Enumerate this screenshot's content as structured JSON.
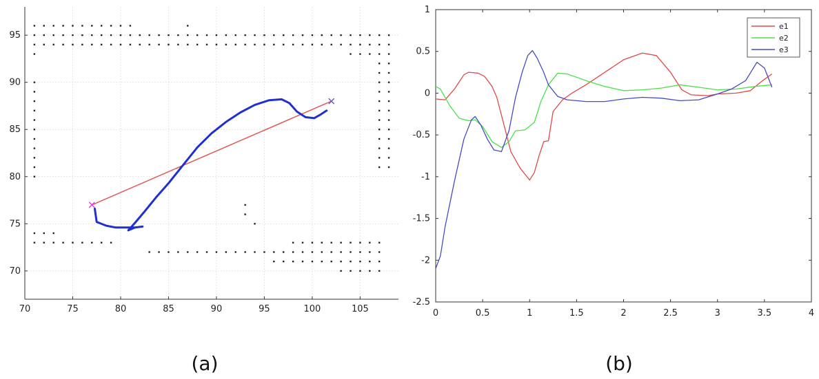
{
  "captions": {
    "a": "(a)",
    "b": "(b)"
  },
  "chart_data": [
    {
      "type": "scatter",
      "xlim": [
        70,
        109
      ],
      "ylim": [
        67,
        98
      ],
      "xticks": [
        70,
        75,
        80,
        85,
        90,
        95,
        100,
        105
      ],
      "yticks": [
        70,
        75,
        80,
        85,
        90,
        95
      ],
      "grid": true,
      "colors": {
        "straight": "#e05a5a",
        "trajectory": "#1f2fd0",
        "start": "#e040e0",
        "goal": "#6a5acd",
        "obstacle": "#222222"
      },
      "straight_line": [
        [
          77,
          77
        ],
        [
          102,
          88
        ]
      ],
      "trajectory": [
        [
          77.3,
          76.6
        ],
        [
          77.5,
          75.2
        ],
        [
          78.5,
          74.8
        ],
        [
          79.5,
          74.6
        ],
        [
          80.5,
          74.6
        ],
        [
          81.5,
          74.6
        ],
        [
          82.3,
          74.7
        ],
        [
          81.5,
          74.6
        ],
        [
          80.8,
          74.3
        ],
        [
          81.5,
          75.1
        ],
        [
          82.5,
          76.3
        ],
        [
          83.7,
          77.8
        ],
        [
          85,
          79.3
        ],
        [
          86.5,
          81.2
        ],
        [
          88,
          83.1
        ],
        [
          89.5,
          84.6
        ],
        [
          91,
          85.8
        ],
        [
          92.5,
          86.8
        ],
        [
          94,
          87.6
        ],
        [
          95.5,
          88.1
        ],
        [
          96.8,
          88.2
        ],
        [
          97.6,
          87.8
        ],
        [
          98.4,
          86.9
        ],
        [
          99.3,
          86.3
        ],
        [
          100.2,
          86.2
        ],
        [
          100.9,
          86.6
        ],
        [
          101.5,
          87
        ]
      ],
      "start_marker": [
        77,
        77
      ],
      "goal_marker": [
        102,
        88
      ],
      "obstacles": [
        [
          71,
          96
        ],
        [
          72,
          96
        ],
        [
          73,
          96
        ],
        [
          74,
          96
        ],
        [
          75,
          96
        ],
        [
          76,
          96
        ],
        [
          77,
          96
        ],
        [
          78,
          96
        ],
        [
          79,
          96
        ],
        [
          80,
          96
        ],
        [
          81,
          96
        ],
        [
          87,
          96
        ],
        [
          71,
          95
        ],
        [
          72,
          95
        ],
        [
          73,
          95
        ],
        [
          74,
          95
        ],
        [
          75,
          95
        ],
        [
          76,
          95
        ],
        [
          77,
          95
        ],
        [
          78,
          95
        ],
        [
          79,
          95
        ],
        [
          80,
          95
        ],
        [
          81,
          95
        ],
        [
          82,
          95
        ],
        [
          83,
          95
        ],
        [
          84,
          95
        ],
        [
          85,
          95
        ],
        [
          86,
          95
        ],
        [
          87,
          95
        ],
        [
          88,
          95
        ],
        [
          89,
          95
        ],
        [
          90,
          95
        ],
        [
          91,
          95
        ],
        [
          92,
          95
        ],
        [
          93,
          95
        ],
        [
          94,
          95
        ],
        [
          95,
          95
        ],
        [
          96,
          95
        ],
        [
          97,
          95
        ],
        [
          98,
          95
        ],
        [
          99,
          95
        ],
        [
          100,
          95
        ],
        [
          101,
          95
        ],
        [
          102,
          95
        ],
        [
          103,
          95
        ],
        [
          104,
          95
        ],
        [
          105,
          95
        ],
        [
          106,
          95
        ],
        [
          107,
          95
        ],
        [
          108,
          95
        ],
        [
          71,
          94
        ],
        [
          72,
          94
        ],
        [
          73,
          94
        ],
        [
          74,
          94
        ],
        [
          75,
          94
        ],
        [
          76,
          94
        ],
        [
          77,
          94
        ],
        [
          78,
          94
        ],
        [
          79,
          94
        ],
        [
          80,
          94
        ],
        [
          81,
          94
        ],
        [
          82,
          94
        ],
        [
          83,
          94
        ],
        [
          84,
          94
        ],
        [
          85,
          94
        ],
        [
          86,
          94
        ],
        [
          87,
          94
        ],
        [
          88,
          94
        ],
        [
          89,
          94
        ],
        [
          90,
          94
        ],
        [
          91,
          94
        ],
        [
          92,
          94
        ],
        [
          93,
          94
        ],
        [
          94,
          94
        ],
        [
          95,
          94
        ],
        [
          96,
          94
        ],
        [
          97,
          94
        ],
        [
          98,
          94
        ],
        [
          99,
          94
        ],
        [
          100,
          94
        ],
        [
          101,
          94
        ],
        [
          102,
          94
        ],
        [
          103,
          94
        ],
        [
          104,
          94
        ],
        [
          105,
          94
        ],
        [
          106,
          94
        ],
        [
          107,
          94
        ],
        [
          108,
          94
        ],
        [
          71,
          93
        ],
        [
          104,
          93
        ],
        [
          105,
          93
        ],
        [
          106,
          93
        ],
        [
          107,
          93
        ],
        [
          108,
          93
        ],
        [
          107,
          92
        ],
        [
          108,
          92
        ],
        [
          107,
          91
        ],
        [
          108,
          91
        ],
        [
          107,
          90
        ],
        [
          108,
          90
        ],
        [
          107,
          89
        ],
        [
          108,
          89
        ],
        [
          107,
          88
        ],
        [
          108,
          88
        ],
        [
          107,
          87
        ],
        [
          108,
          87
        ],
        [
          107,
          86
        ],
        [
          108,
          86
        ],
        [
          107,
          85
        ],
        [
          108,
          85
        ],
        [
          107,
          84
        ],
        [
          108,
          84
        ],
        [
          107,
          83
        ],
        [
          108,
          83
        ],
        [
          107,
          82
        ],
        [
          108,
          82
        ],
        [
          107,
          81
        ],
        [
          108,
          81
        ],
        [
          71,
          90
        ],
        [
          71,
          89
        ],
        [
          71,
          88
        ],
        [
          71,
          87
        ],
        [
          71,
          86
        ],
        [
          71,
          85
        ],
        [
          71,
          84
        ],
        [
          71,
          83
        ],
        [
          71,
          82
        ],
        [
          71,
          81
        ],
        [
          71,
          80
        ],
        [
          71,
          74
        ],
        [
          72,
          74
        ],
        [
          73,
          74
        ],
        [
          71,
          73
        ],
        [
          72,
          73
        ],
        [
          73,
          73
        ],
        [
          74,
          73
        ],
        [
          75,
          73
        ],
        [
          76,
          73
        ],
        [
          77,
          73
        ],
        [
          78,
          73
        ],
        [
          79,
          73
        ],
        [
          83,
          72
        ],
        [
          84,
          72
        ],
        [
          85,
          72
        ],
        [
          86,
          72
        ],
        [
          87,
          72
        ],
        [
          88,
          72
        ],
        [
          89,
          72
        ],
        [
          90,
          72
        ],
        [
          91,
          72
        ],
        [
          92,
          72
        ],
        [
          93,
          72
        ],
        [
          94,
          72
        ],
        [
          95,
          72
        ],
        [
          96,
          72
        ],
        [
          97,
          72
        ],
        [
          98,
          72
        ],
        [
          99,
          72
        ],
        [
          100,
          72
        ],
        [
          101,
          72
        ],
        [
          102,
          72
        ],
        [
          103,
          72
        ],
        [
          104,
          72
        ],
        [
          105,
          72
        ],
        [
          106,
          72
        ],
        [
          107,
          72
        ],
        [
          98,
          73
        ],
        [
          99,
          73
        ],
        [
          100,
          73
        ],
        [
          101,
          73
        ],
        [
          102,
          73
        ],
        [
          103,
          73
        ],
        [
          104,
          73
        ],
        [
          105,
          73
        ],
        [
          106,
          73
        ],
        [
          107,
          73
        ],
        [
          96,
          71
        ],
        [
          97,
          71
        ],
        [
          98,
          71
        ],
        [
          99,
          71
        ],
        [
          100,
          71
        ],
        [
          101,
          71
        ],
        [
          102,
          71
        ],
        [
          103,
          71
        ],
        [
          104,
          71
        ],
        [
          105,
          71
        ],
        [
          106,
          71
        ],
        [
          107,
          71
        ],
        [
          103,
          70
        ],
        [
          104,
          70
        ],
        [
          105,
          70
        ],
        [
          106,
          70
        ],
        [
          107,
          70
        ],
        [
          93,
          77
        ],
        [
          93,
          76
        ],
        [
          94,
          75
        ]
      ]
    },
    {
      "type": "line",
      "xlim": [
        0,
        4
      ],
      "ylim": [
        -2.5,
        1
      ],
      "xticks": [
        0,
        0.5,
        1,
        1.5,
        2,
        2.5,
        3,
        3.5,
        4
      ],
      "yticks": [
        1,
        0.5,
        0,
        -0.5,
        -1,
        -1.5,
        -2,
        -2.5
      ],
      "legend_position": "top-right",
      "series": [
        {
          "name": "e1",
          "color": "#e04848",
          "points": [
            [
              0,
              -0.07
            ],
            [
              0.1,
              -0.08
            ],
            [
              0.2,
              0.05
            ],
            [
              0.3,
              0.22
            ],
            [
              0.35,
              0.25
            ],
            [
              0.45,
              0.24
            ],
            [
              0.52,
              0.2
            ],
            [
              0.6,
              0.08
            ],
            [
              0.65,
              -0.05
            ],
            [
              0.72,
              -0.35
            ],
            [
              0.8,
              -0.7
            ],
            [
              0.9,
              -0.9
            ],
            [
              1,
              -1.04
            ],
            [
              1.05,
              -0.95
            ],
            [
              1.1,
              -0.75
            ],
            [
              1.15,
              -0.58
            ],
            [
              1.2,
              -0.57
            ],
            [
              1.25,
              -0.22
            ],
            [
              1.35,
              -0.08
            ],
            [
              1.45,
              0
            ],
            [
              1.6,
              0.1
            ],
            [
              1.8,
              0.25
            ],
            [
              2,
              0.4
            ],
            [
              2.2,
              0.48
            ],
            [
              2.35,
              0.45
            ],
            [
              2.5,
              0.25
            ],
            [
              2.62,
              0.04
            ],
            [
              2.72,
              -0.02
            ],
            [
              2.9,
              -0.03
            ],
            [
              3,
              -0.01
            ],
            [
              3.2,
              0
            ],
            [
              3.35,
              0.03
            ],
            [
              3.48,
              0.15
            ],
            [
              3.58,
              0.23
            ]
          ]
        },
        {
          "name": "e2",
          "color": "#48e048",
          "points": [
            [
              0,
              0.08
            ],
            [
              0.05,
              0.05
            ],
            [
              0.15,
              -0.15
            ],
            [
              0.25,
              -0.3
            ],
            [
              0.35,
              -0.33
            ],
            [
              0.42,
              -0.32
            ],
            [
              0.5,
              -0.4
            ],
            [
              0.6,
              -0.58
            ],
            [
              0.7,
              -0.65
            ],
            [
              0.78,
              -0.58
            ],
            [
              0.85,
              -0.45
            ],
            [
              0.95,
              -0.44
            ],
            [
              1.05,
              -0.35
            ],
            [
              1.12,
              -0.1
            ],
            [
              1.2,
              0.1
            ],
            [
              1.3,
              0.24
            ],
            [
              1.4,
              0.23
            ],
            [
              1.6,
              0.15
            ],
            [
              1.8,
              0.08
            ],
            [
              2,
              0.03
            ],
            [
              2.2,
              0.04
            ],
            [
              2.4,
              0.06
            ],
            [
              2.6,
              0.1
            ],
            [
              2.8,
              0.07
            ],
            [
              3,
              0.04
            ],
            [
              3.2,
              0.05
            ],
            [
              3.4,
              0.08
            ],
            [
              3.58,
              0.1
            ]
          ]
        },
        {
          "name": "e3",
          "color": "#4848c8",
          "points": [
            [
              0,
              -2.1
            ],
            [
              0.05,
              -1.95
            ],
            [
              0.1,
              -1.6
            ],
            [
              0.2,
              -1.05
            ],
            [
              0.3,
              -0.55
            ],
            [
              0.38,
              -0.32
            ],
            [
              0.42,
              -0.28
            ],
            [
              0.48,
              -0.38
            ],
            [
              0.55,
              -0.55
            ],
            [
              0.62,
              -0.68
            ],
            [
              0.7,
              -0.7
            ],
            [
              0.78,
              -0.45
            ],
            [
              0.85,
              -0.05
            ],
            [
              0.92,
              0.25
            ],
            [
              0.98,
              0.45
            ],
            [
              1.03,
              0.51
            ],
            [
              1.08,
              0.42
            ],
            [
              1.15,
              0.25
            ],
            [
              1.2,
              0.1
            ],
            [
              1.3,
              -0.04
            ],
            [
              1.4,
              -0.08
            ],
            [
              1.6,
              -0.1
            ],
            [
              1.8,
              -0.1
            ],
            [
              2,
              -0.07
            ],
            [
              2.2,
              -0.05
            ],
            [
              2.4,
              -0.06
            ],
            [
              2.6,
              -0.09
            ],
            [
              2.8,
              -0.08
            ],
            [
              3,
              -0.01
            ],
            [
              3.15,
              0.05
            ],
            [
              3.3,
              0.15
            ],
            [
              3.42,
              0.37
            ],
            [
              3.5,
              0.3
            ],
            [
              3.58,
              0.07
            ]
          ]
        }
      ]
    }
  ]
}
